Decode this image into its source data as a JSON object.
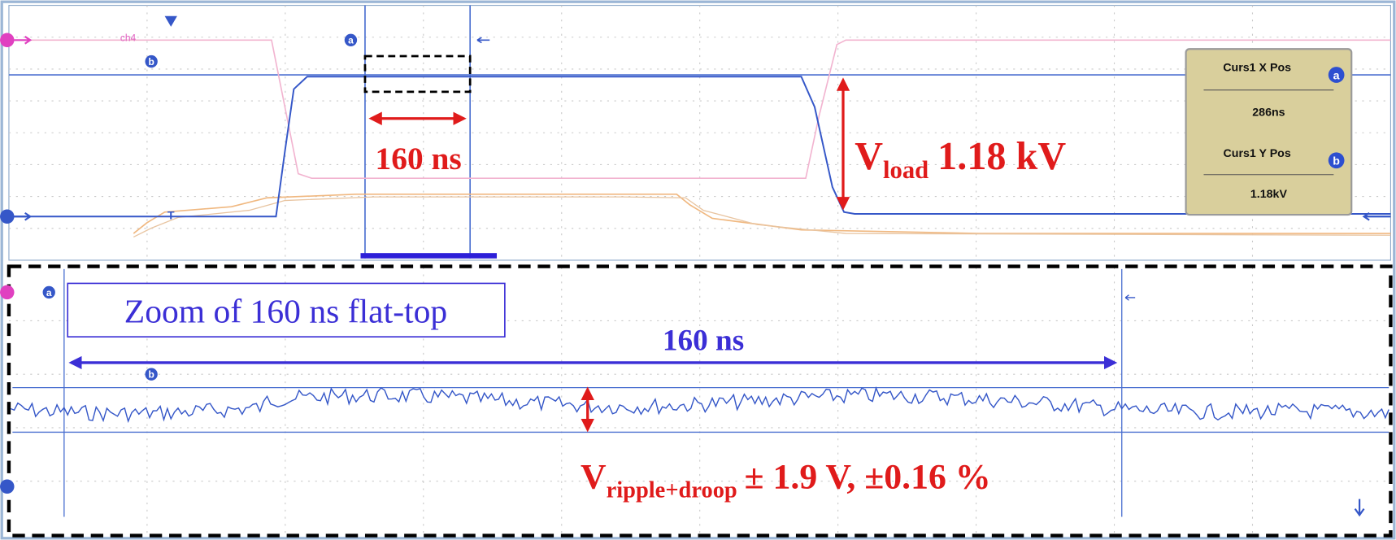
{
  "top_panel": {
    "channel_label": "ch4",
    "cursor_a": "a",
    "cursor_b": "b",
    "trigger": "T",
    "width_label": "160 ns",
    "vload": {
      "symbol": "V",
      "subscript": "load",
      "value": "1.18 kV"
    },
    "readout": {
      "x_title": "Curs1 X Pos",
      "x_badge": "a",
      "x_value": "286ns",
      "y_title": "Curs1 Y Pos",
      "y_badge": "b",
      "y_value": "1.18kV"
    }
  },
  "zoom_panel": {
    "title": "Zoom of 160 ns flat-top",
    "cursor_a": "a",
    "cursor_b": "b",
    "width_label": "160 ns",
    "ripple": {
      "symbol": "V",
      "subscript": "ripple+droop",
      "value": "± 1.9 V, ±0.16 %"
    }
  }
}
